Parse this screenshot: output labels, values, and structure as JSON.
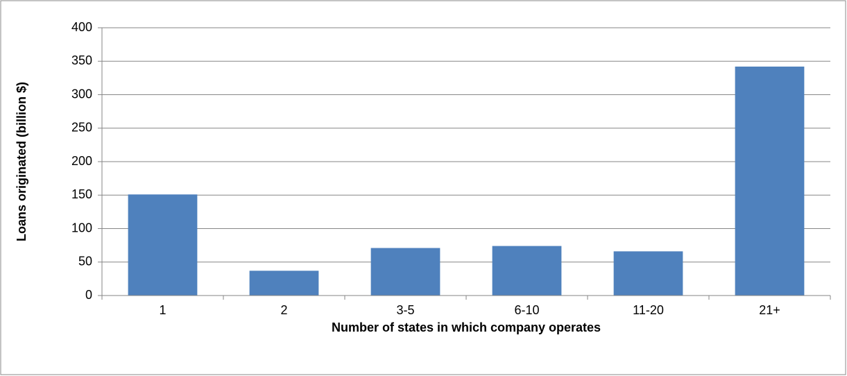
{
  "chart_data": {
    "type": "bar",
    "x_label": "Number of states in which company operates",
    "y_label": "Loans originated (billion $)",
    "categories": [
      "1",
      "2",
      "3-5",
      "6-10",
      "11-20",
      "21+"
    ],
    "values": [
      151,
      37,
      71,
      74,
      66,
      342
    ],
    "color": "#4f81bd",
    "ylim": [
      0,
      400
    ],
    "yticks": [
      0,
      50,
      100,
      150,
      200,
      250,
      300,
      350,
      400
    ],
    "grid": true
  }
}
